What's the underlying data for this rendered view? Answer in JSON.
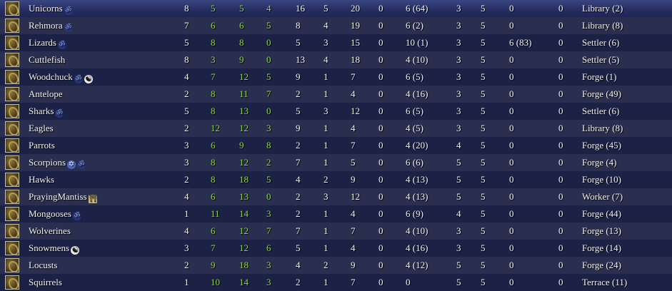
{
  "colors": {
    "green": "#8fd14a",
    "row_dark": "#1c2246",
    "row_light": "#2b2f4f"
  },
  "rows": [
    {
      "name": "Unicorns",
      "icons": [
        "om-icon"
      ],
      "c": [
        "8",
        "5",
        "5",
        "4",
        "16",
        "5",
        "20",
        "0",
        "6 (64)",
        "3",
        "5",
        "0",
        "0",
        "Library (2)"
      ]
    },
    {
      "name": "Rehmora",
      "icons": [
        "om-icon"
      ],
      "c": [
        "7",
        "6",
        "6",
        "5",
        "8",
        "4",
        "19",
        "0",
        "6 (2)",
        "3",
        "5",
        "0",
        "0",
        "Library (8)"
      ]
    },
    {
      "name": "Lizards",
      "icons": [
        "om-icon"
      ],
      "c": [
        "5",
        "8",
        "8",
        "0",
        "5",
        "3",
        "15",
        "0",
        "10 (1)",
        "3",
        "5",
        "6 (83)",
        "0",
        "Settler (6)"
      ]
    },
    {
      "name": "Cuttlefish",
      "icons": [],
      "c": [
        "8",
        "3",
        "9",
        "0",
        "13",
        "4",
        "18",
        "0",
        "4 (10)",
        "3",
        "5",
        "0",
        "0",
        "Settler (5)"
      ]
    },
    {
      "name": "Woodchuck",
      "icons": [
        "om-icon",
        "yin-yang-icon"
      ],
      "c": [
        "4",
        "7",
        "12",
        "5",
        "9",
        "1",
        "7",
        "0",
        "6 (5)",
        "3",
        "5",
        "0",
        "0",
        "Forge (1)"
      ]
    },
    {
      "name": "Antelope",
      "icons": [],
      "c": [
        "2",
        "8",
        "11",
        "7",
        "2",
        "1",
        "4",
        "0",
        "4 (16)",
        "3",
        "5",
        "0",
        "0",
        "Forge (49)"
      ]
    },
    {
      "name": "Sharks",
      "icons": [
        "om-icon"
      ],
      "c": [
        "5",
        "8",
        "13",
        "0",
        "5",
        "3",
        "12",
        "0",
        "6 (5)",
        "3",
        "5",
        "0",
        "0",
        "Settler (6)"
      ]
    },
    {
      "name": "Eagles",
      "icons": [],
      "c": [
        "2",
        "12",
        "12",
        "3",
        "9",
        "1",
        "4",
        "0",
        "4 (5)",
        "3",
        "5",
        "0",
        "0",
        "Library (8)"
      ]
    },
    {
      "name": "Parrots",
      "icons": [],
      "c": [
        "3",
        "6",
        "9",
        "8",
        "2",
        "1",
        "7",
        "0",
        "4 (20)",
        "4",
        "5",
        "0",
        "0",
        "Forge (45)"
      ]
    },
    {
      "name": "Scorpions",
      "icons": [
        "star-icon",
        "om-icon"
      ],
      "c": [
        "3",
        "8",
        "12",
        "2",
        "7",
        "1",
        "5",
        "0",
        "6 (6)",
        "5",
        "5",
        "0",
        "0",
        "Forge (4)"
      ]
    },
    {
      "name": "Hawks",
      "icons": [],
      "c": [
        "2",
        "8",
        "18",
        "5",
        "4",
        "2",
        "9",
        "0",
        "4 (13)",
        "5",
        "5",
        "0",
        "0",
        "Forge (10)"
      ]
    },
    {
      "name": "PrayingMantiss",
      "icons": [
        "shrine-icon"
      ],
      "c": [
        "4",
        "6",
        "13",
        "0",
        "2",
        "3",
        "12",
        "0",
        "4 (13)",
        "5",
        "5",
        "0",
        "0",
        "Worker (7)"
      ]
    },
    {
      "name": "Mongooses",
      "icons": [
        "om-icon"
      ],
      "c": [
        "1",
        "11",
        "14",
        "3",
        "2",
        "1",
        "4",
        "0",
        "6 (9)",
        "4",
        "5",
        "0",
        "0",
        "Forge (44)"
      ]
    },
    {
      "name": "Wolverines",
      "icons": [],
      "c": [
        "4",
        "6",
        "12",
        "7",
        "7",
        "1",
        "7",
        "0",
        "4 (10)",
        "3",
        "5",
        "0",
        "0",
        "Forge (13)"
      ]
    },
    {
      "name": "Snowmens",
      "icons": [
        "yin-yang-icon"
      ],
      "c": [
        "3",
        "7",
        "12",
        "6",
        "5",
        "1",
        "4",
        "0",
        "4 (16)",
        "3",
        "5",
        "0",
        "0",
        "Forge (14)"
      ]
    },
    {
      "name": "Locusts",
      "icons": [],
      "c": [
        "2",
        "9",
        "18",
        "3",
        "4",
        "2",
        "9",
        "0",
        "4 (12)",
        "5",
        "5",
        "0",
        "0",
        "Forge (24)"
      ]
    },
    {
      "name": "Squirrels",
      "icons": [],
      "c": [
        "1",
        "10",
        "14",
        "3",
        "2",
        "1",
        "7",
        "0",
        "0",
        "5",
        "5",
        "0",
        "0",
        "Terrace (11)"
      ]
    }
  ]
}
